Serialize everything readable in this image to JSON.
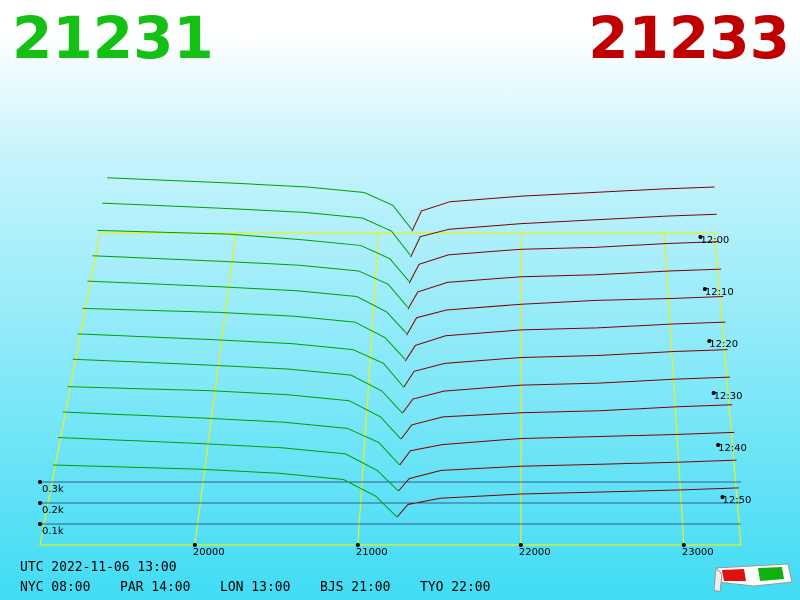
{
  "header": {
    "bid": 21231,
    "ask": 21233
  },
  "chart_data": {
    "type": "depth3d",
    "bid_color": "#00a000",
    "ask_color": "#800000",
    "floor_color": "#e8f020",
    "xlim": [
      19050,
      23350
    ],
    "xticks": [
      20000,
      21000,
      22000,
      23000
    ],
    "tlim": [
      0,
      60
    ],
    "tticks": [
      {
        "value": 0,
        "label": "12:00"
      },
      {
        "value": 10,
        "label": "12:10"
      },
      {
        "value": 20,
        "label": "12:20"
      },
      {
        "value": 30,
        "label": "12:30"
      },
      {
        "value": 40,
        "label": "12:40"
      },
      {
        "value": 50,
        "label": "12:50"
      }
    ],
    "zticks": [
      {
        "value": 0.1,
        "label": "0.1k"
      },
      {
        "value": 0.2,
        "label": "0.2k"
      },
      {
        "value": 0.3,
        "label": "0.3k"
      }
    ],
    "bid_prices": [
      19100,
      20000,
      20500,
      20900,
      21100,
      21231
    ],
    "ask_prices": [
      21233,
      21300,
      21500,
      22000,
      22500,
      23000,
      23350
    ],
    "snapshots": [
      {
        "t": 0,
        "bids": [
          0.3,
          0.27,
          0.25,
          0.22,
          0.15,
          0.02
        ],
        "asks": [
          0.01,
          0.12,
          0.17,
          0.2,
          0.22,
          0.24,
          0.25
        ]
      },
      {
        "t": 5,
        "bids": [
          0.3,
          0.27,
          0.25,
          0.22,
          0.15,
          0.02
        ],
        "asks": [
          0.01,
          0.12,
          0.16,
          0.19,
          0.21,
          0.23,
          0.24
        ]
      },
      {
        "t": 10,
        "bids": [
          0.29,
          0.27,
          0.24,
          0.21,
          0.14,
          0.02
        ],
        "asks": [
          0.01,
          0.11,
          0.16,
          0.19,
          0.2,
          0.22,
          0.23
        ]
      },
      {
        "t": 15,
        "bids": [
          0.29,
          0.26,
          0.24,
          0.21,
          0.14,
          0.02
        ],
        "asks": [
          0.01,
          0.1,
          0.15,
          0.18,
          0.19,
          0.21,
          0.22
        ]
      },
      {
        "t": 20,
        "bids": [
          0.29,
          0.26,
          0.24,
          0.21,
          0.13,
          0.02
        ],
        "asks": [
          0.01,
          0.1,
          0.14,
          0.17,
          0.19,
          0.2,
          0.21
        ]
      },
      {
        "t": 25,
        "bids": [
          0.28,
          0.26,
          0.24,
          0.21,
          0.13,
          0.02
        ],
        "asks": [
          0.01,
          0.09,
          0.14,
          0.17,
          0.18,
          0.2,
          0.21
        ]
      },
      {
        "t": 30,
        "bids": [
          0.28,
          0.25,
          0.23,
          0.2,
          0.13,
          0.01
        ],
        "asks": [
          0.01,
          0.09,
          0.13,
          0.16,
          0.17,
          0.19,
          0.2
        ]
      },
      {
        "t": 35,
        "bids": [
          0.28,
          0.25,
          0.23,
          0.2,
          0.12,
          0.01
        ],
        "asks": [
          0.01,
          0.08,
          0.12,
          0.15,
          0.16,
          0.18,
          0.19
        ]
      },
      {
        "t": 40,
        "bids": [
          0.27,
          0.25,
          0.23,
          0.2,
          0.12,
          0.01
        ],
        "asks": [
          0.01,
          0.08,
          0.12,
          0.14,
          0.15,
          0.17,
          0.18
        ]
      },
      {
        "t": 45,
        "bids": [
          0.27,
          0.24,
          0.22,
          0.19,
          0.12,
          0.01
        ],
        "asks": [
          0.01,
          0.08,
          0.11,
          0.14,
          0.15,
          0.16,
          0.17
        ]
      },
      {
        "t": 50,
        "bids": [
          0.27,
          0.24,
          0.22,
          0.19,
          0.11,
          0.01
        ],
        "asks": [
          0.01,
          0.07,
          0.11,
          0.13,
          0.14,
          0.15,
          0.16
        ]
      },
      {
        "t": 55,
        "bids": [
          0.26,
          0.24,
          0.22,
          0.19,
          0.11,
          0.01
        ],
        "asks": [
          0.01,
          0.07,
          0.1,
          0.12,
          0.13,
          0.14,
          0.15
        ]
      }
    ]
  },
  "footer": {
    "utc": "UTC 2022-11-06 13:00",
    "clocks": [
      "NYC 08:00",
      "PAR 14:00",
      "LON 13:00",
      "BJS 21:00",
      "TYO 22:00"
    ]
  }
}
